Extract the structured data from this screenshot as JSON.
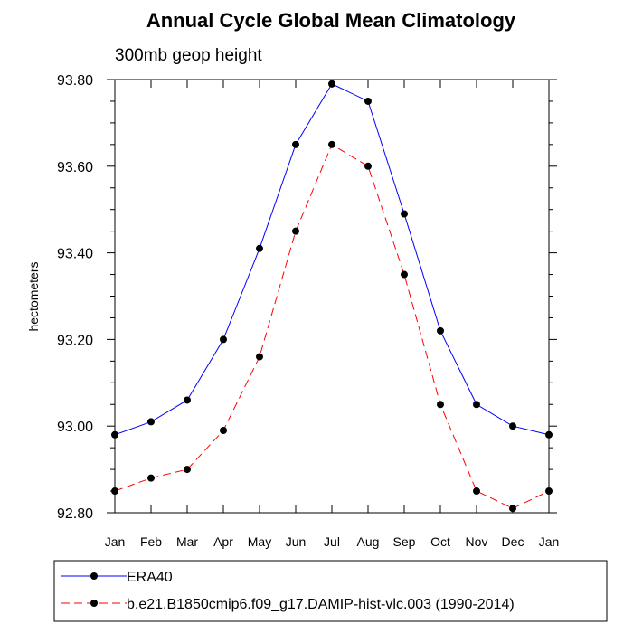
{
  "chart_data": {
    "type": "line",
    "title": "Annual Cycle Global Mean Climatology",
    "subtitle": "300mb geop height",
    "xlabel": "",
    "ylabel": "hectometers",
    "categories": [
      "Jan",
      "Feb",
      "Mar",
      "Apr",
      "May",
      "Jun",
      "Jul",
      "Aug",
      "Sep",
      "Oct",
      "Nov",
      "Dec",
      "Jan"
    ],
    "yticks": [
      "92.80",
      "93.00",
      "93.20",
      "93.40",
      "93.60",
      "93.80"
    ],
    "ylim": [
      92.8,
      93.8
    ],
    "legend_position": "bottom",
    "series": [
      {
        "name": "ERA40",
        "color": "#0000ff",
        "dash": "solid",
        "values": [
          92.98,
          93.01,
          93.06,
          93.2,
          93.41,
          93.65,
          93.79,
          93.75,
          93.49,
          93.22,
          93.05,
          93.0,
          92.98
        ]
      },
      {
        "name": "b.e21.B1850cmip6.f09_g17.DAMIP-hist-vlc.003 (1990-2014)",
        "color": "#ff0000",
        "dash": "dashed",
        "values": [
          92.85,
          92.88,
          92.9,
          92.99,
          93.16,
          93.45,
          93.65,
          93.6,
          93.35,
          93.05,
          92.85,
          92.81,
          92.85
        ]
      }
    ]
  }
}
